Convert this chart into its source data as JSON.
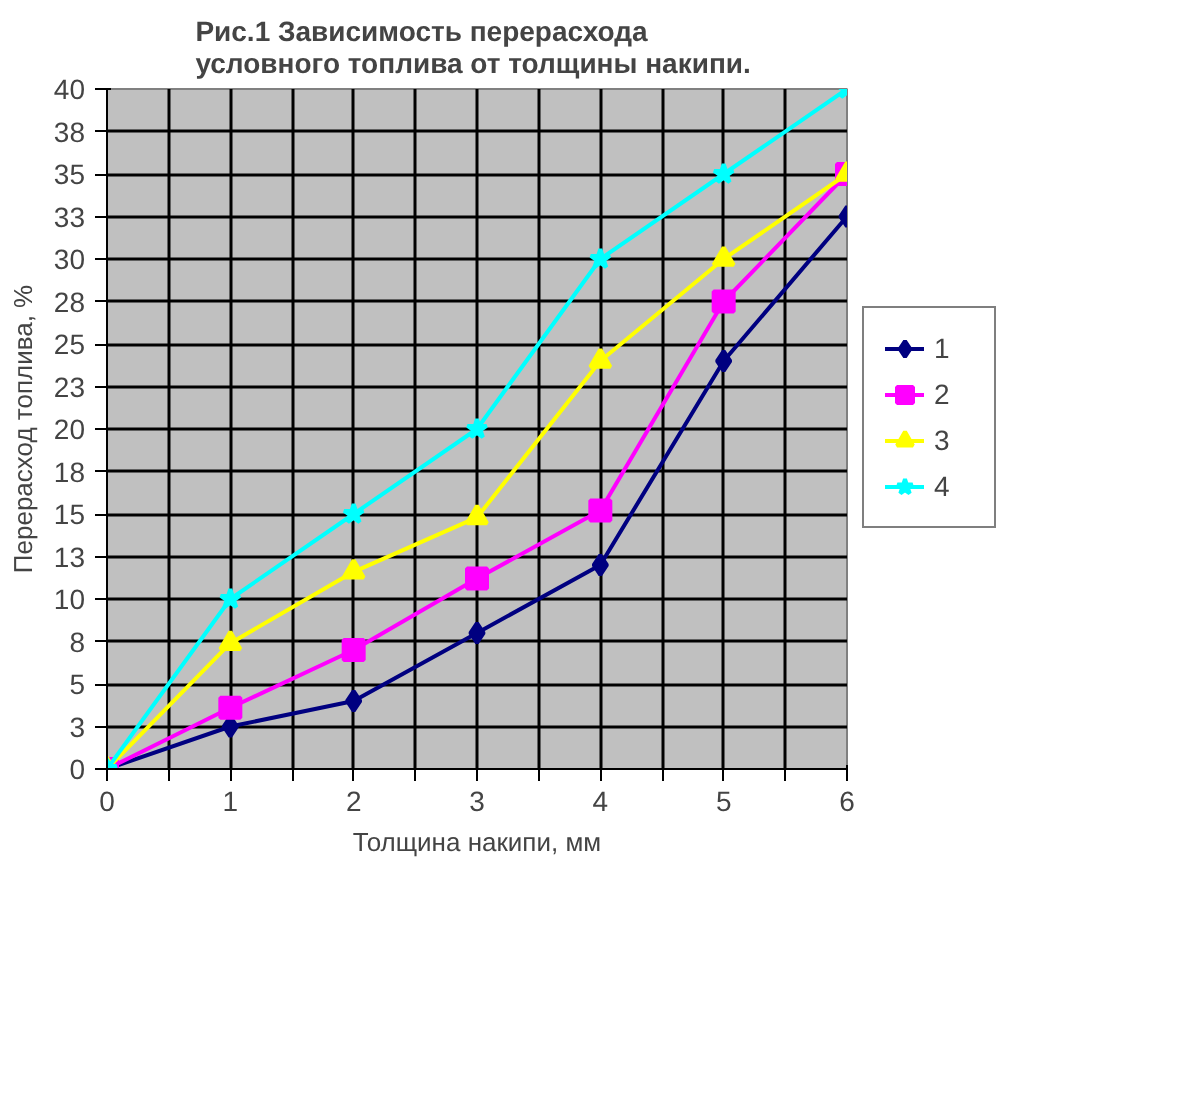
{
  "chart_data": {
    "type": "line",
    "title": "Рис.1    Зависимость перерасхода\nусловного топлива  от толщины накипи.",
    "xlabel": "Толщина накипи, мм",
    "ylabel": "Перерасход топлива, %",
    "x": [
      0,
      1,
      2,
      3,
      4,
      5,
      6
    ],
    "series": [
      {
        "name": "1",
        "color": "#000080",
        "marker": "diamond",
        "values": [
          0,
          2.5,
          4,
          8,
          12,
          24,
          32.5
        ]
      },
      {
        "name": "2",
        "color": "#ff00ff",
        "marker": "square",
        "values": [
          0,
          3.6,
          7,
          11.2,
          15.2,
          27.5,
          35
        ]
      },
      {
        "name": "3",
        "color": "#ffff00",
        "marker": "triangle",
        "values": [
          0,
          7.4,
          11.6,
          14.8,
          24,
          30,
          35
        ]
      },
      {
        "name": "4",
        "color": "#00ffff",
        "marker": "star",
        "values": [
          0,
          10,
          15,
          20,
          30,
          35,
          40
        ]
      }
    ],
    "xlim": [
      0,
      6
    ],
    "ylim": [
      0,
      40
    ],
    "xticks": [
      0,
      {
        "value": 0.5,
        "label": null
      },
      1,
      {
        "value": 1.5,
        "label": null
      },
      2,
      {
        "value": 2.5,
        "label": null
      },
      3,
      {
        "value": 3.5,
        "label": null
      },
      4,
      {
        "value": 4.5,
        "label": null
      },
      5,
      {
        "value": 5.5,
        "label": null
      },
      6
    ],
    "yticks": [
      0,
      {
        "value": 2.5,
        "label": "3"
      },
      5,
      {
        "value": 7.5,
        "label": "8"
      },
      10,
      {
        "value": 12.5,
        "label": "13"
      },
      15,
      {
        "value": 17.5,
        "label": "18"
      },
      20,
      {
        "value": 22.5,
        "label": "23"
      },
      25,
      {
        "value": 27.5,
        "label": "28"
      },
      30,
      {
        "value": 32.5,
        "label": "33"
      },
      35,
      {
        "value": 37.5,
        "label": "38"
      },
      40
    ],
    "grid": true,
    "legend": "right",
    "line_style": "solid"
  }
}
